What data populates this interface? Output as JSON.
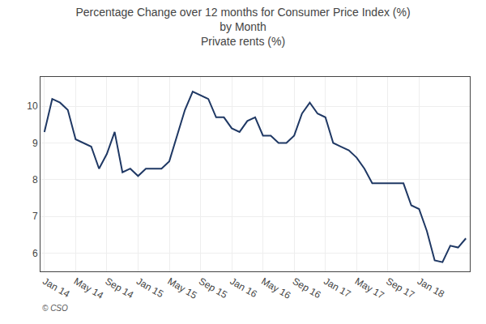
{
  "chart_data": {
    "type": "line",
    "title": "Percentage Change over 12 months for Consumer Price Index (%)\nby Month\nPrivate rents (%)",
    "categories": [
      "Jan 14",
      null,
      null,
      null,
      "May 14",
      null,
      null,
      null,
      "Sep 14",
      null,
      null,
      null,
      "Jan 15",
      null,
      null,
      null,
      "May 15",
      null,
      null,
      null,
      "Sep 15",
      null,
      null,
      null,
      "Jan 16",
      null,
      null,
      null,
      "May 16",
      null,
      null,
      null,
      "Sep 16",
      null,
      null,
      null,
      "Jan 17",
      null,
      null,
      null,
      "May 17",
      null,
      null,
      null,
      "Sep 17",
      null,
      null,
      null,
      "Jan 18",
      null,
      null,
      null,
      null,
      null,
      null
    ],
    "values": [
      9.3,
      10.2,
      10.1,
      9.9,
      9.1,
      9.0,
      8.9,
      8.3,
      8.7,
      9.3,
      8.2,
      8.3,
      8.1,
      8.3,
      8.3,
      8.3,
      8.5,
      9.2,
      9.9,
      10.4,
      10.3,
      10.2,
      9.7,
      9.7,
      9.4,
      9.3,
      9.6,
      9.7,
      9.2,
      9.2,
      9.0,
      9.0,
      9.2,
      9.8,
      10.1,
      9.8,
      9.7,
      9.0,
      8.9,
      8.8,
      8.6,
      8.3,
      7.9,
      7.9,
      7.9,
      7.9,
      7.9,
      7.3,
      7.2,
      6.6,
      5.8,
      5.75,
      6.2,
      6.15,
      6.4
    ],
    "color": "#1F3864",
    "ylim": [
      5.5,
      10.8
    ],
    "yticks": [
      6,
      7,
      8,
      9,
      10
    ],
    "grid": true,
    "annotations": [
      "© CSO"
    ]
  }
}
